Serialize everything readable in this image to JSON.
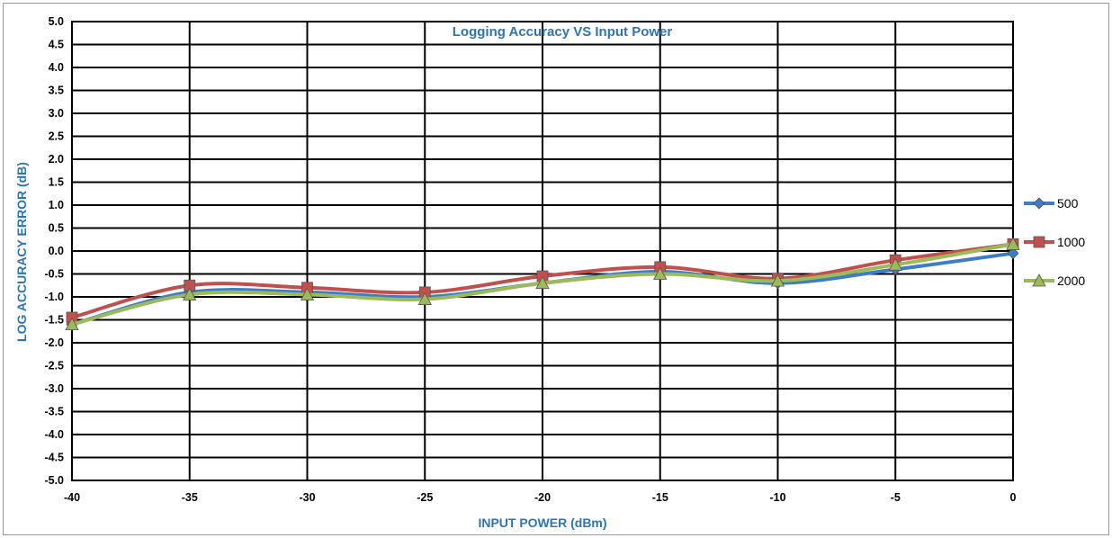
{
  "chart_data": {
    "type": "line",
    "title": "Logging Accuracy VS Input Power",
    "xlabel": "INPUT POWER (dBm)",
    "ylabel": "LOG ACCURACY ERROR (dB)",
    "x": [
      -40,
      -35,
      -30,
      -25,
      -20,
      -15,
      -10,
      -5,
      0
    ],
    "xlim": [
      -40,
      0
    ],
    "ylim": [
      -5.0,
      5.0
    ],
    "x_ticks": [
      "-40",
      "-35",
      "-30",
      "-25",
      "-20",
      "-15",
      "-10",
      "-5",
      "0"
    ],
    "y_ticks": [
      "5.0",
      "4.5",
      "4.0",
      "3.5",
      "3.0",
      "2.5",
      "2.0",
      "1.5",
      "1.0",
      "0.5",
      "0.0",
      "-0.5",
      "-1.0",
      "-1.5",
      "-2.0",
      "-2.5",
      "-3.0",
      "-3.5",
      "-4.0",
      "-4.5",
      "-5.0"
    ],
    "grid": true,
    "legend_position": "right",
    "series": [
      {
        "name": "500",
        "color": "#3d7cc9",
        "marker": "diamond",
        "values": [
          -1.6,
          -0.9,
          -0.9,
          -1.0,
          -0.7,
          -0.45,
          -0.7,
          -0.4,
          -0.05
        ]
      },
      {
        "name": "1000",
        "color": "#c0504d",
        "marker": "square",
        "values": [
          -1.45,
          -0.75,
          -0.8,
          -0.9,
          -0.55,
          -0.35,
          -0.6,
          -0.2,
          0.15
        ]
      },
      {
        "name": "2000",
        "color": "#9bbb59",
        "marker": "triangle",
        "values": [
          -1.6,
          -0.95,
          -0.95,
          -1.05,
          -0.7,
          -0.5,
          -0.65,
          -0.3,
          0.15
        ]
      }
    ]
  }
}
